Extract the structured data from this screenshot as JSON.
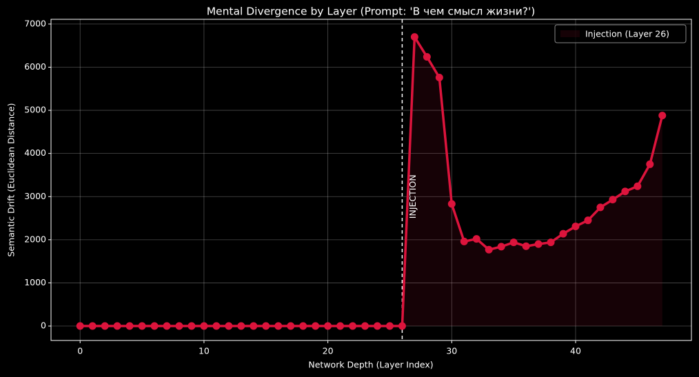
{
  "chart_data": {
    "type": "line",
    "title": "Mental Divergence by Layer (Prompt: 'В чем смысл жизни?')",
    "xlabel": "Network Depth (Layer Index)",
    "ylabel": "Semantic Drift (Euclidean Distance)",
    "x": [
      0,
      1,
      2,
      3,
      4,
      5,
      6,
      7,
      8,
      9,
      10,
      11,
      12,
      13,
      14,
      15,
      16,
      17,
      18,
      19,
      20,
      21,
      22,
      23,
      24,
      25,
      26,
      27,
      28,
      29,
      30,
      31,
      32,
      33,
      34,
      35,
      36,
      37,
      38,
      39,
      40,
      41,
      42,
      43,
      44,
      45,
      46,
      47
    ],
    "series": [
      {
        "name": "Injection (Layer 26)",
        "color": "#dc143c",
        "values": [
          0,
          0,
          0,
          0,
          0,
          0,
          0,
          0,
          0,
          0,
          0,
          0,
          0,
          0,
          0,
          0,
          0,
          0,
          0,
          0,
          0,
          0,
          0,
          0,
          0,
          0,
          0,
          6700,
          6240,
          5760,
          2830,
          1960,
          2020,
          1770,
          1840,
          1940,
          1850,
          1900,
          1940,
          2140,
          2310,
          2450,
          2750,
          2930,
          3120,
          3240,
          3750,
          4880
        ]
      }
    ],
    "injection_layer": 26,
    "annotations": [
      {
        "text": "INJECTION",
        "x": 26.9,
        "y": 3000
      }
    ],
    "xlim": [
      -2.35,
      49.35
    ],
    "ylim": [
      -335,
      7110
    ],
    "xticks": [
      0,
      10,
      20,
      30,
      40
    ],
    "yticks": [
      0,
      1000,
      2000,
      3000,
      4000,
      5000,
      6000,
      7000
    ],
    "grid": true,
    "legend": "upper right"
  }
}
